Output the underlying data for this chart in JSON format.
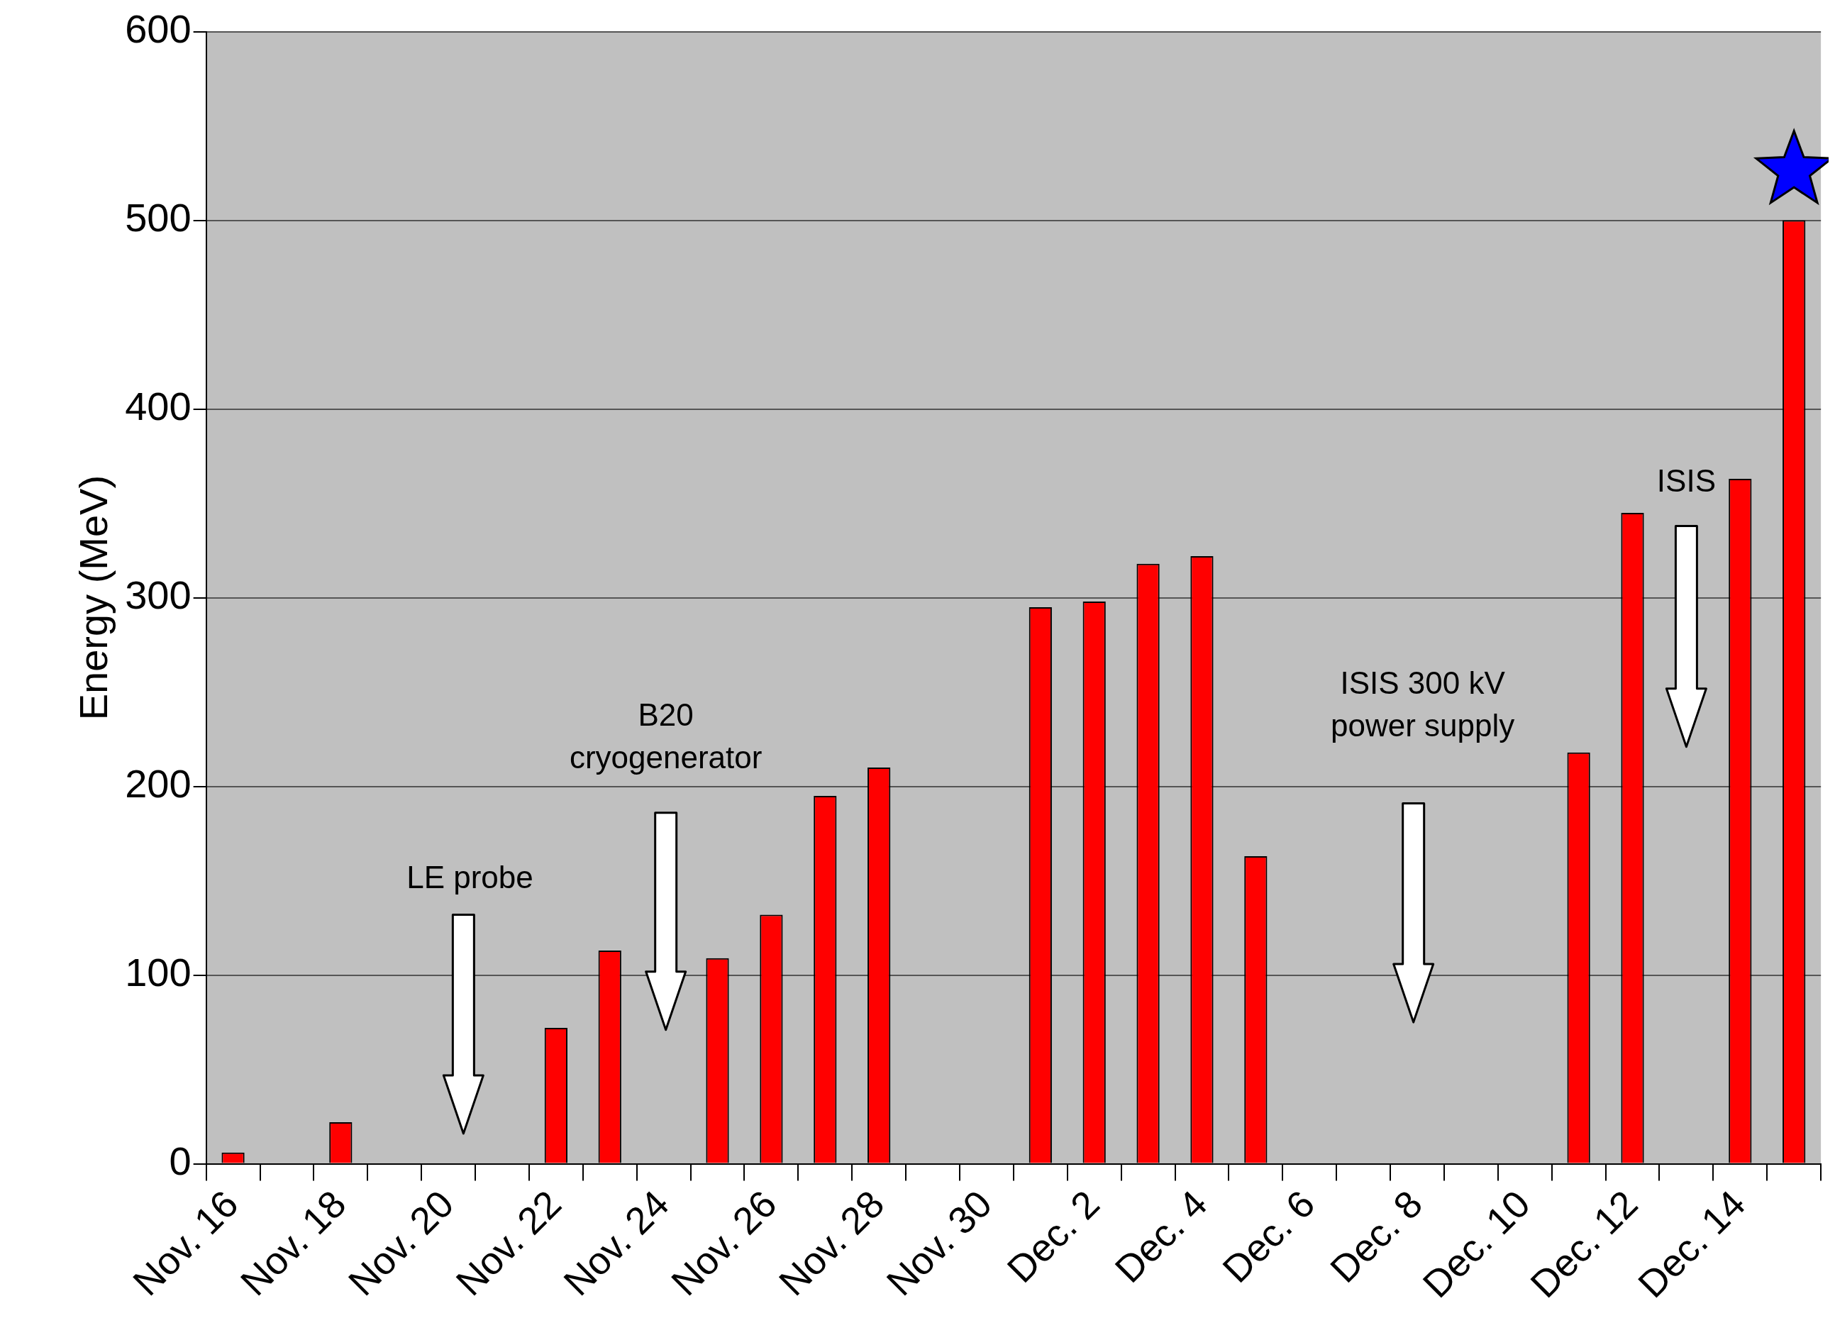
{
  "chart_data": {
    "type": "bar",
    "ylabel": "Energy (MeV)",
    "categories": [
      "Nov. 16",
      null,
      "Nov. 18",
      null,
      "Nov. 20",
      null,
      "Nov. 22",
      null,
      "Nov. 24",
      null,
      "Nov. 26",
      null,
      "Nov. 28",
      null,
      "Nov. 30",
      null,
      "Dec. 2",
      null,
      "Dec. 4",
      null,
      "Dec. 6",
      null,
      "Dec. 8",
      null,
      "Dec. 10",
      null,
      "Dec. 12",
      null,
      "Dec. 14",
      null
    ],
    "values": [
      6,
      null,
      22,
      null,
      null,
      null,
      72,
      113,
      null,
      109,
      132,
      195,
      210,
      null,
      null,
      295,
      298,
      318,
      322,
      163,
      null,
      null,
      null,
      null,
      null,
      218,
      345,
      null,
      363,
      500
    ],
    "color": "#ff0000",
    "ylim": [
      0,
      600
    ],
    "yticks": [
      0,
      100,
      200,
      300,
      400,
      500,
      600
    ],
    "grid": "y",
    "legend": false,
    "annotations": [
      "LE probe",
      "B20\ncryogenerator",
      "ISIS 300 kV\npower supply",
      "ISIS"
    ]
  }
}
